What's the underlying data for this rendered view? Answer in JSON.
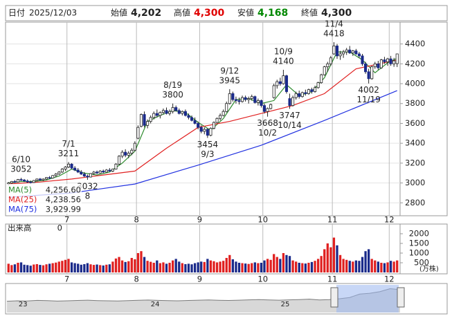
{
  "header": {
    "date_label": "日付",
    "date": "2025/12/03",
    "open_label": "始値",
    "open": "4,202",
    "high_label": "高値",
    "high": "4,300",
    "low_label": "安値",
    "low": "4,168",
    "close_label": "終値",
    "close": "4,300"
  },
  "chart_data": [
    {
      "type": "candlestick",
      "up_color": "#ffffff",
      "down_color": "#1a2a8a",
      "outline_color": "#222222",
      "ylim": [
        2670,
        4620
      ],
      "yticks": [
        2800,
        3000,
        3200,
        3400,
        3600,
        3800,
        4000,
        4200,
        4400
      ],
      "grid": true,
      "xticks": [
        {
          "value": 19,
          "label": "7"
        },
        {
          "value": 41,
          "label": "8"
        },
        {
          "value": 61,
          "label": "9"
        },
        {
          "value": 81,
          "label": "10"
        },
        {
          "value": 103,
          "label": "11"
        },
        {
          "value": 121,
          "label": "12"
        }
      ],
      "ohlc": [
        [
          2990,
          3010,
          2975,
          3000
        ],
        [
          3000,
          3020,
          2990,
          3015
        ],
        [
          3015,
          3030,
          3000,
          3010
        ],
        [
          3010,
          3040,
          3005,
          3035
        ],
        [
          3035,
          3052,
          3020,
          3030
        ],
        [
          3030,
          3040,
          3010,
          3020
        ],
        [
          3020,
          3035,
          3000,
          3010
        ],
        [
          3010,
          3025,
          2995,
          3005
        ],
        [
          3005,
          3030,
          3000,
          3025
        ],
        [
          3025,
          3045,
          3015,
          3040
        ],
        [
          3040,
          3050,
          3025,
          3030
        ],
        [
          3030,
          3045,
          3020,
          3040
        ],
        [
          3040,
          3060,
          3030,
          3055
        ],
        [
          3055,
          3070,
          3040,
          3050
        ],
        [
          3050,
          3080,
          3045,
          3075
        ],
        [
          3075,
          3100,
          3060,
          3090
        ],
        [
          3090,
          3120,
          3080,
          3110
        ],
        [
          3110,
          3150,
          3100,
          3140
        ],
        [
          3140,
          3170,
          3120,
          3160
        ],
        [
          3160,
          3211,
          3150,
          3190
        ],
        [
          3190,
          3200,
          3140,
          3150
        ],
        [
          3150,
          3170,
          3120,
          3130
        ],
        [
          3130,
          3150,
          3100,
          3110
        ],
        [
          3110,
          3130,
          3080,
          3090
        ],
        [
          3090,
          3110,
          3060,
          3070
        ],
        [
          3070,
          3085,
          3032,
          3060
        ],
        [
          3060,
          3100,
          3055,
          3095
        ],
        [
          3095,
          3120,
          3080,
          3110
        ],
        [
          3110,
          3125,
          3090,
          3100
        ],
        [
          3100,
          3130,
          3095,
          3120
        ],
        [
          3120,
          3135,
          3100,
          3110
        ],
        [
          3110,
          3140,
          3105,
          3130
        ],
        [
          3130,
          3150,
          3115,
          3120
        ],
        [
          3120,
          3145,
          3110,
          3140
        ],
        [
          3140,
          3200,
          3135,
          3190
        ],
        [
          3190,
          3280,
          3180,
          3270
        ],
        [
          3270,
          3330,
          3250,
          3310
        ],
        [
          3310,
          3340,
          3260,
          3280
        ],
        [
          3280,
          3320,
          3250,
          3300
        ],
        [
          3300,
          3350,
          3280,
          3330
        ],
        [
          3330,
          3420,
          3320,
          3400
        ],
        [
          3450,
          3580,
          3440,
          3560
        ],
        [
          3570,
          3700,
          3560,
          3690
        ],
        [
          3690,
          3720,
          3560,
          3580
        ],
        [
          3580,
          3640,
          3550,
          3620
        ],
        [
          3620,
          3680,
          3600,
          3660
        ],
        [
          3660,
          3720,
          3640,
          3700
        ],
        [
          3700,
          3740,
          3660,
          3680
        ],
        [
          3680,
          3720,
          3650,
          3710
        ],
        [
          3710,
          3750,
          3690,
          3730
        ],
        [
          3730,
          3760,
          3690,
          3700
        ],
        [
          3700,
          3740,
          3680,
          3720
        ],
        [
          3720,
          3800,
          3700,
          3760
        ],
        [
          3760,
          3780,
          3720,
          3730
        ],
        [
          3730,
          3750,
          3690,
          3700
        ],
        [
          3700,
          3730,
          3680,
          3720
        ],
        [
          3720,
          3740,
          3670,
          3680
        ],
        [
          3680,
          3700,
          3640,
          3660
        ],
        [
          3660,
          3680,
          3620,
          3630
        ],
        [
          3630,
          3660,
          3590,
          3600
        ],
        [
          3600,
          3620,
          3540,
          3560
        ],
        [
          3560,
          3580,
          3500,
          3520
        ],
        [
          3520,
          3560,
          3490,
          3540
        ],
        [
          3540,
          3550,
          3454,
          3480
        ],
        [
          3480,
          3560,
          3470,
          3550
        ],
        [
          3550,
          3620,
          3540,
          3610
        ],
        [
          3610,
          3660,
          3600,
          3650
        ],
        [
          3650,
          3700,
          3630,
          3680
        ],
        [
          3680,
          3740,
          3670,
          3720
        ],
        [
          3720,
          3820,
          3710,
          3800
        ],
        [
          3800,
          3945,
          3790,
          3900
        ],
        [
          3900,
          3920,
          3820,
          3840
        ],
        [
          3840,
          3870,
          3800,
          3830
        ],
        [
          3830,
          3860,
          3790,
          3820
        ],
        [
          3820,
          3880,
          3810,
          3860
        ],
        [
          3860,
          3880,
          3820,
          3840
        ],
        [
          3840,
          3870,
          3800,
          3850
        ],
        [
          3850,
          3890,
          3830,
          3870
        ],
        [
          3870,
          3880,
          3800,
          3810
        ],
        [
          3810,
          3850,
          3780,
          3830
        ],
        [
          3830,
          3840,
          3760,
          3780
        ],
        [
          3780,
          3800,
          3700,
          3720
        ],
        [
          3720,
          3760,
          3668,
          3750
        ],
        [
          3750,
          3800,
          3740,
          3790
        ],
        [
          3860,
          4000,
          3850,
          3980
        ],
        [
          3980,
          4040,
          3950,
          4020
        ],
        [
          4020,
          4060,
          3980,
          4000
        ],
        [
          4000,
          4140,
          3990,
          4080
        ],
        [
          4080,
          4090,
          3900,
          3920
        ],
        [
          3850,
          3900,
          3747,
          3780
        ],
        [
          3780,
          3880,
          3770,
          3860
        ],
        [
          3860,
          3920,
          3840,
          3900
        ],
        [
          3900,
          3930,
          3850,
          3870
        ],
        [
          3870,
          3920,
          3860,
          3910
        ],
        [
          3910,
          3940,
          3880,
          3900
        ],
        [
          3900,
          3950,
          3890,
          3940
        ],
        [
          3940,
          3960,
          3900,
          3920
        ],
        [
          3920,
          3980,
          3910,
          3960
        ],
        [
          3960,
          4020,
          3950,
          4010
        ],
        [
          4010,
          4100,
          4000,
          4090
        ],
        [
          4090,
          4180,
          4080,
          4170
        ],
        [
          4170,
          4220,
          4120,
          4200
        ],
        [
          4200,
          4280,
          4180,
          4260
        ],
        [
          4300,
          4418,
          4290,
          4380
        ],
        [
          4380,
          4400,
          4250,
          4280
        ],
        [
          4280,
          4330,
          4240,
          4300
        ],
        [
          4300,
          4340,
          4260,
          4320
        ],
        [
          4320,
          4360,
          4290,
          4340
        ],
        [
          4340,
          4380,
          4300,
          4310
        ],
        [
          4310,
          4340,
          4280,
          4330
        ],
        [
          4330,
          4350,
          4290,
          4300
        ],
        [
          4300,
          4320,
          4260,
          4280
        ],
        [
          4280,
          4300,
          4180,
          4200
        ],
        [
          4200,
          4220,
          4100,
          4120
        ],
        [
          4120,
          4150,
          4002,
          4050
        ],
        [
          4050,
          4180,
          4040,
          4170
        ],
        [
          4170,
          4220,
          4150,
          4200
        ],
        [
          4200,
          4230,
          4140,
          4160
        ],
        [
          4160,
          4250,
          4150,
          4240
        ],
        [
          4240,
          4270,
          4200,
          4220
        ],
        [
          4220,
          4260,
          4180,
          4250
        ],
        [
          4250,
          4280,
          4180,
          4200
        ],
        [
          4200,
          4260,
          4170,
          4230
        ],
        [
          4202,
          4300,
          4168,
          4300
        ]
      ],
      "lines": [
        {
          "name": "MA(5)",
          "legend_value": "4,256.60",
          "color": "#2e8b2e",
          "x": [
            0,
            4,
            8,
            12,
            16,
            20,
            24,
            28,
            32,
            36,
            40,
            44,
            48,
            52,
            56,
            60,
            64,
            68,
            72,
            76,
            80,
            84,
            88,
            92,
            96,
            100,
            104,
            108,
            112,
            116,
            120,
            123
          ],
          "values": [
            3000,
            3015,
            3015,
            3030,
            3070,
            3140,
            3100,
            3080,
            3110,
            3200,
            3320,
            3620,
            3680,
            3730,
            3710,
            3610,
            3530,
            3650,
            3840,
            3850,
            3800,
            3830,
            3990,
            3880,
            3920,
            4060,
            4320,
            4320,
            4240,
            4110,
            4210,
            4257
          ]
        },
        {
          "name": "MA(25)",
          "legend_value": "4,238.56",
          "color": "#e02020",
          "x": [
            0,
            10,
            20,
            30,
            40,
            50,
            60,
            70,
            80,
            90,
            100,
            110,
            123
          ],
          "values": [
            2990,
            3010,
            3040,
            3080,
            3120,
            3350,
            3560,
            3620,
            3700,
            3780,
            3900,
            4150,
            4239
          ]
        },
        {
          "name": "MA(75)",
          "legend_value": "3,929.99",
          "color": "#2030e0",
          "x": [
            0,
            20,
            40,
            60,
            80,
            100,
            123
          ],
          "values": [
            2855,
            2900,
            2990,
            3180,
            3380,
            3630,
            3930
          ]
        }
      ],
      "annotations": [
        {
          "date": "6/10",
          "value": 3052,
          "kind": "high"
        },
        {
          "date": "7/1",
          "value": 3211,
          "kind": "high"
        },
        {
          "date": "8",
          "value": 3032,
          "kind": "low"
        },
        {
          "date": "8/19",
          "value": 3800,
          "kind": "high"
        },
        {
          "date": "9/3",
          "value": 3454,
          "kind": "low"
        },
        {
          "date": "9/12",
          "value": 3945,
          "kind": "high"
        },
        {
          "date": "10/2",
          "value": 3668,
          "kind": "low"
        },
        {
          "date": "10/9",
          "value": 4140,
          "kind": "high"
        },
        {
          "date": "10/14",
          "value": 3747,
          "kind": "low"
        },
        {
          "date": "11/4",
          "value": 4418,
          "kind": "high"
        },
        {
          "date": "11/19",
          "value": 4002,
          "kind": "low"
        }
      ]
    },
    {
      "type": "bar",
      "title": "出来高",
      "current": 0,
      "unit": "(万株)",
      "up_color": "#e02020",
      "down_color": "#1a2a8a",
      "ylim": [
        0,
        2500
      ],
      "yticks": [
        500,
        1000,
        1500,
        2000
      ],
      "xticks": [
        {
          "value": 19,
          "label": "7"
        },
        {
          "value": 41,
          "label": "8"
        },
        {
          "value": 61,
          "label": "9"
        },
        {
          "value": 81,
          "label": "10"
        },
        {
          "value": 103,
          "label": "11"
        },
        {
          "value": 121,
          "label": "12"
        }
      ],
      "values": [
        450,
        380,
        420,
        500,
        520,
        400,
        380,
        350,
        410,
        430,
        390,
        370,
        420,
        450,
        480,
        510,
        560,
        600,
        650,
        700,
        520,
        480,
        450,
        400,
        430,
        480,
        420,
        390,
        410,
        380,
        360,
        400,
        420,
        560,
        720,
        800,
        620,
        540,
        580,
        750,
        680,
        1000,
        1100,
        800,
        600,
        550,
        500,
        620,
        480,
        520,
        450,
        500,
        620,
        700,
        560,
        480,
        430,
        450,
        420,
        480,
        520,
        560,
        540,
        700,
        620,
        580,
        520,
        560,
        600,
        750,
        900,
        680,
        560,
        500,
        480,
        460,
        440,
        480,
        520,
        480,
        500,
        620,
        700,
        650,
        950,
        800,
        700,
        1000,
        900,
        850,
        620,
        560,
        500,
        480,
        460,
        500,
        540,
        600,
        700,
        850,
        1200,
        1500,
        1300,
        1800,
        1400,
        900,
        700,
        650,
        600,
        560,
        620,
        600,
        800,
        1100,
        1200,
        700,
        620,
        560,
        500,
        480,
        520,
        600,
        560,
        620
      ]
    },
    {
      "type": "area",
      "color": "#7a7a7a",
      "ylim": [
        1500,
        4800
      ],
      "xticks": [
        {
          "value": 1.6,
          "label": "23"
        },
        {
          "value": 14.7,
          "label": "24"
        },
        {
          "value": 27.6,
          "label": "25"
        }
      ],
      "values": [
        2850,
        2900,
        2880,
        2950,
        2920,
        2870,
        2900,
        2940,
        2980,
        2930,
        2900,
        2880,
        2920,
        2960,
        2990,
        2950,
        2920,
        2900,
        2940,
        2980,
        3000,
        2960,
        2940,
        2980,
        3020,
        3050,
        3000,
        2980,
        3020,
        3050,
        3100,
        3000,
        3050,
        3150,
        3300,
        3700,
        3800,
        4000,
        4350,
        4250
      ]
    }
  ]
}
